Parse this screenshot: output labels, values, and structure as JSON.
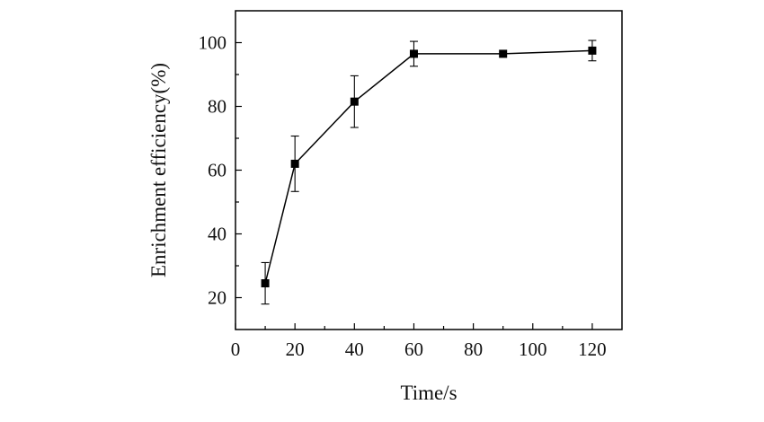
{
  "chart_data": {
    "type": "line",
    "xlabel": "Time/s",
    "ylabel": "Enrichment efficiency(%)",
    "xlim": [
      0,
      130
    ],
    "ylim": [
      10,
      110
    ],
    "x_ticks": [
      0,
      20,
      40,
      60,
      80,
      100,
      120
    ],
    "y_ticks": [
      20,
      40,
      60,
      80,
      100
    ],
    "grid": false,
    "series": [
      {
        "marker": "square",
        "color": "#000000",
        "points": [
          {
            "x": 10,
            "y": 24.5,
            "err": 6.5
          },
          {
            "x": 20,
            "y": 62.0,
            "err": 8.7
          },
          {
            "x": 40,
            "y": 81.5,
            "err": 8.1
          },
          {
            "x": 60,
            "y": 96.5,
            "err": 3.9
          },
          {
            "x": 90,
            "y": 96.5,
            "err": 0
          },
          {
            "x": 120,
            "y": 97.5,
            "err": 3.2
          }
        ]
      }
    ]
  }
}
